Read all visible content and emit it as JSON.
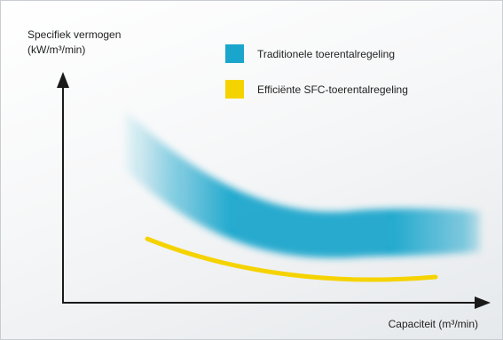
{
  "chart_data": {
    "type": "area",
    "ylabel_line1": "Specifiek vermogen",
    "ylabel_line2": "(kW/m³/min)",
    "xlabel": "Capaciteit (m³/min)",
    "grid": false,
    "legend_position": "top-right",
    "series": [
      {
        "name": "Traditionele toerentalregeling",
        "color": "#1aa6cc",
        "style": "band"
      },
      {
        "name": "Efficiënte SFC-toerentalregeling",
        "color": "#f5d300",
        "style": "line"
      }
    ]
  }
}
